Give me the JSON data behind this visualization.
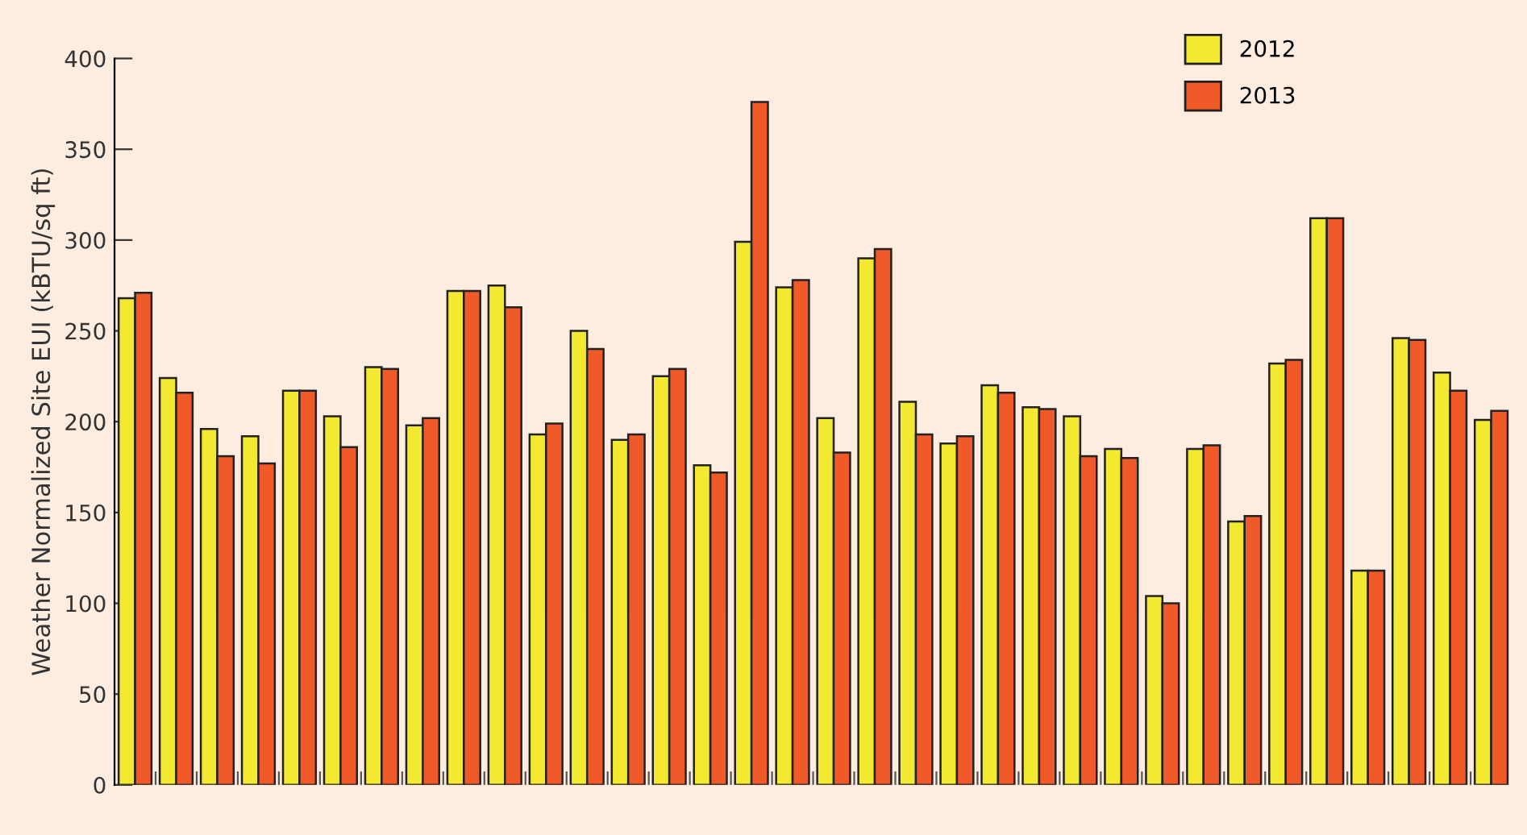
{
  "chart_data": {
    "type": "bar",
    "ylabel": "Weather Normalized Site EUI (kBTU/sq ft)",
    "categories": [
      null,
      null,
      null,
      null,
      null,
      null,
      null,
      null,
      null,
      null,
      null,
      null,
      null,
      null,
      null,
      null,
      null,
      null,
      null,
      null,
      null,
      null,
      null,
      null,
      null,
      null,
      null,
      null,
      null,
      null,
      null,
      null,
      null,
      null
    ],
    "series": [
      {
        "name": "2012",
        "color": "#f2e930",
        "values": [
          268,
          224,
          196,
          192,
          217,
          203,
          230,
          198,
          272,
          275,
          193,
          250,
          190,
          225,
          176,
          299,
          274,
          202,
          290,
          211,
          188,
          220,
          208,
          203,
          185,
          104,
          185,
          145,
          232,
          312,
          118,
          246,
          227,
          201
        ]
      },
      {
        "name": "2013",
        "color": "#f05a28",
        "values": [
          271,
          216,
          181,
          177,
          217,
          186,
          229,
          202,
          272,
          263,
          199,
          240,
          193,
          229,
          172,
          376,
          278,
          183,
          295,
          193,
          192,
          216,
          207,
          181,
          180,
          100,
          187,
          148,
          234,
          312,
          118,
          245,
          217,
          206
        ]
      }
    ],
    "ylim": [
      0,
      400
    ],
    "yticks": [
      0,
      50,
      100,
      150,
      200,
      250,
      300,
      350,
      400
    ],
    "grid": false,
    "legend": "top right"
  }
}
